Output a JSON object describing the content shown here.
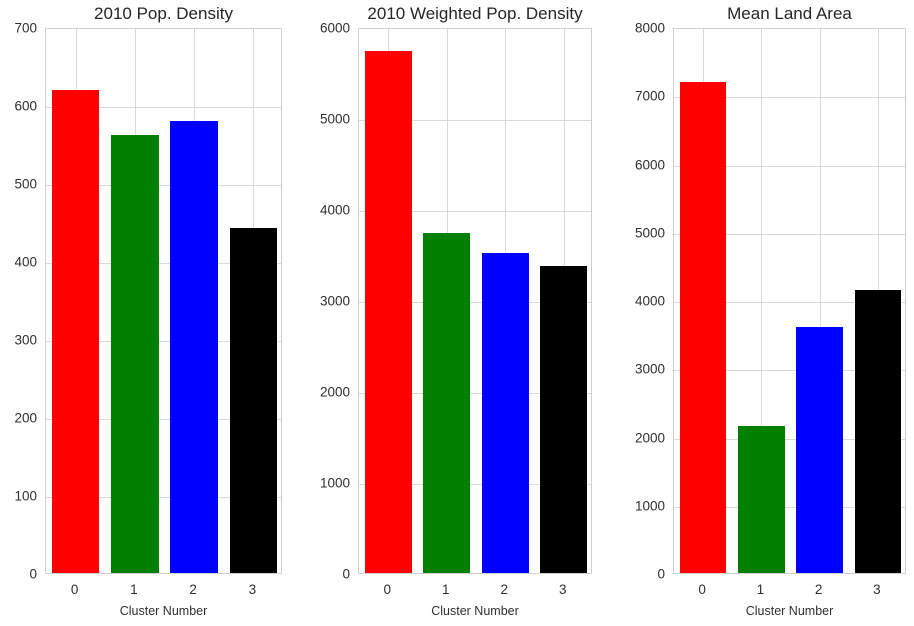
{
  "figure": {
    "background": "#ffffff",
    "grid_color": "#d9d9d9",
    "spine_color": "#cfcfcf",
    "text_color": "#262626"
  },
  "chart_data": [
    {
      "type": "bar",
      "title": "2010 Pop. Density",
      "xlabel": "Cluster Number",
      "ylabel": "",
      "categories": [
        "0",
        "1",
        "2",
        "3"
      ],
      "values": [
        622,
        564,
        581,
        444
      ],
      "bar_colors": [
        "#ff0000",
        "#008000",
        "#0000ff",
        "#000000"
      ],
      "ylim": [
        0,
        700
      ],
      "ytick_step": 100,
      "grid": "on",
      "legend": "none"
    },
    {
      "type": "bar",
      "title": "2010 Weighted Pop. Density",
      "xlabel": "Cluster Number",
      "ylabel": "",
      "categories": [
        "0",
        "1",
        "2",
        "3"
      ],
      "values": [
        5760,
        3745,
        3530,
        3390
      ],
      "bar_colors": [
        "#ff0000",
        "#008000",
        "#0000ff",
        "#000000"
      ],
      "ylim": [
        0,
        6000
      ],
      "ytick_step": 1000,
      "grid": "on",
      "legend": "none"
    },
    {
      "type": "bar",
      "title": "Mean Land Area",
      "xlabel": "Cluster Number",
      "ylabel": "",
      "categories": [
        "0",
        "1",
        "2",
        "3"
      ],
      "values": [
        7220,
        2155,
        3625,
        4155
      ],
      "bar_colors": [
        "#ff0000",
        "#008000",
        "#0000ff",
        "#000000"
      ],
      "ylim": [
        0,
        8000
      ],
      "ytick_step": 1000,
      "grid": "on",
      "legend": "none"
    }
  ]
}
